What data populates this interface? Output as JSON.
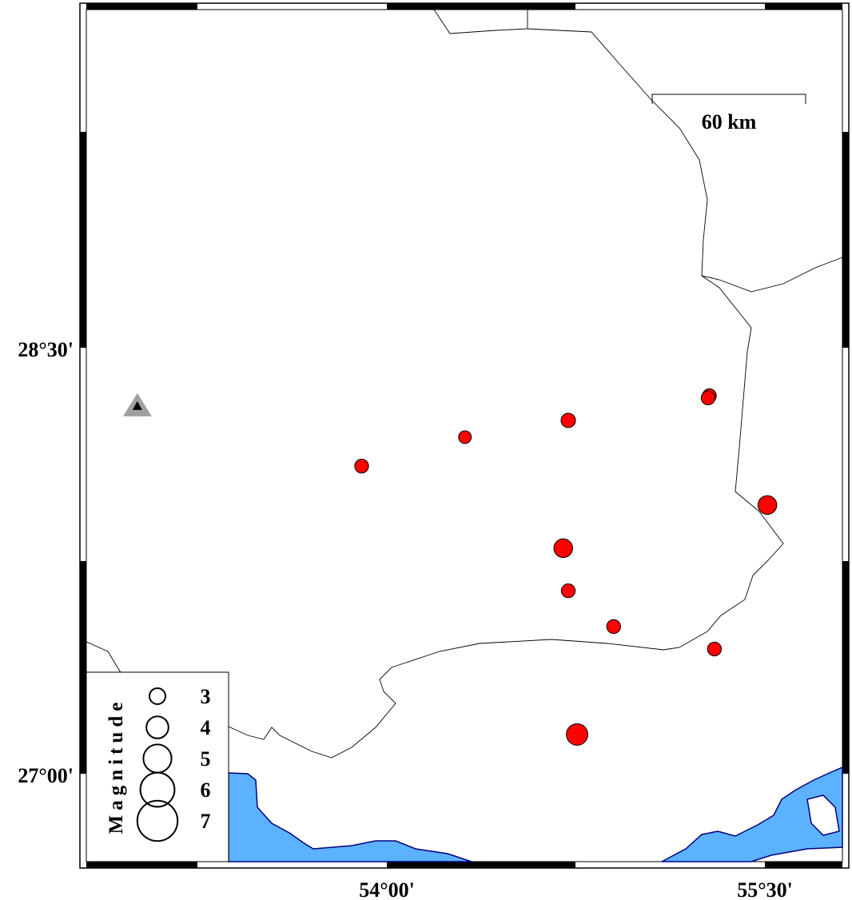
{
  "map": {
    "frame_labels": {
      "lat": [
        {
          "value": 28.5,
          "text": "28°30'"
        },
        {
          "value": 27.0,
          "text": "27°00'"
        }
      ],
      "lon": [
        {
          "value": 54.0,
          "text": "54°00'"
        },
        {
          "value": 55.5,
          "text": "55°30'"
        }
      ]
    },
    "scale_bar": {
      "label": "60 km"
    },
    "colors": {
      "event": "#ff0000",
      "water": "#5cb2ff",
      "coast": "#000080",
      "station": "#a0a0a0"
    },
    "station": {
      "lon": 53.01,
      "lat": 28.295,
      "icon": "triangle"
    },
    "events": [
      {
        "lon": 53.9,
        "lat": 28.083,
        "mag": 2.9
      },
      {
        "lon": 54.31,
        "lat": 28.185,
        "mag": 2.7
      },
      {
        "lon": 54.72,
        "lat": 28.244,
        "mag": 3.0
      },
      {
        "lon": 55.28,
        "lat": 28.331,
        "mag": 2.9
      },
      {
        "lon": 55.275,
        "lat": 28.323,
        "mag": 2.9
      },
      {
        "lon": 55.51,
        "lat": 27.946,
        "mag": 3.8
      },
      {
        "lon": 54.7,
        "lat": 27.794,
        "mag": 3.8
      },
      {
        "lon": 54.72,
        "lat": 27.644,
        "mag": 2.9
      },
      {
        "lon": 54.9,
        "lat": 27.518,
        "mag": 2.9
      },
      {
        "lon": 55.3,
        "lat": 27.439,
        "mag": 2.9
      },
      {
        "lon": 54.755,
        "lat": 27.138,
        "mag": 4.3
      }
    ],
    "legend": {
      "title": "Magnitude",
      "items": [
        {
          "mag": 3,
          "label": "3"
        },
        {
          "mag": 4,
          "label": "4"
        },
        {
          "mag": 5,
          "label": "5"
        },
        {
          "mag": 6,
          "label": "6"
        },
        {
          "mag": 7,
          "label": "7"
        }
      ]
    }
  }
}
